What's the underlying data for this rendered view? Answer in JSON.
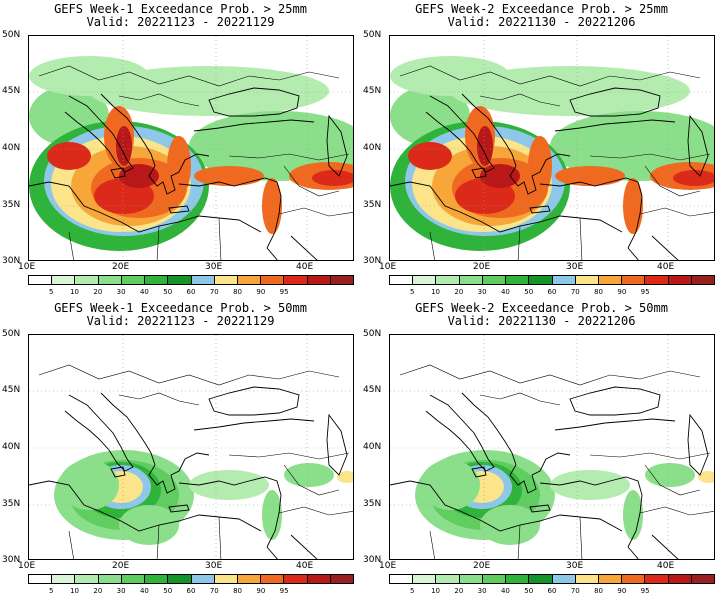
{
  "panels": [
    {
      "title": "GEFS Week-1 Exceedance Prob. > 25mm",
      "valid": "Valid: 20221123 - 20221129",
      "threshold": 25
    },
    {
      "title": "GEFS Week-2 Exceedance Prob. > 25mm",
      "valid": "Valid: 20221130 - 20221206",
      "threshold": 25
    },
    {
      "title": "GEFS Week-1 Exceedance Prob. > 50mm",
      "valid": "Valid: 20221123 - 20221129",
      "threshold": 50
    },
    {
      "title": "GEFS Week-2 Exceedance Prob. > 50mm",
      "valid": "Valid: 20221130 - 20221206",
      "threshold": 50
    }
  ],
  "lat_labels": [
    "50N",
    "45N",
    "40N",
    "35N",
    "30N"
  ],
  "lon_labels": [
    "10E",
    "20E",
    "30E",
    "40E"
  ],
  "colorbar": {
    "ticks": [
      "5",
      "10",
      "20",
      "30",
      "40",
      "50",
      "60",
      "70",
      "80",
      "90",
      "95"
    ],
    "colors": [
      "#ffffff",
      "#d9f5d6",
      "#b4ecb0",
      "#8cdf8a",
      "#5fcd5f",
      "#2fb33a",
      "#12962a",
      "#8ec8e8",
      "#fbe48a",
      "#f7a63a",
      "#ef6a20",
      "#dc2a1a",
      "#b81818",
      "#9a2020"
    ]
  }
}
